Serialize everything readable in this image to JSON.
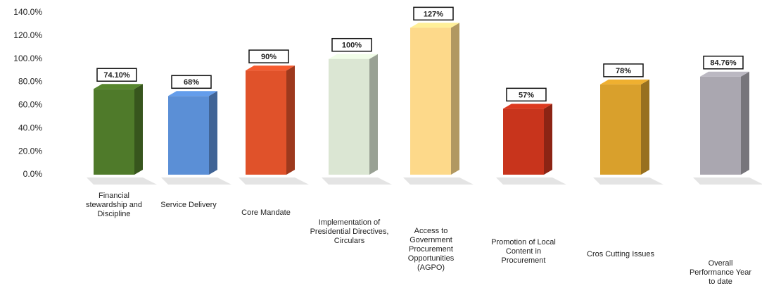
{
  "chart_data": {
    "type": "bar3d",
    "categories": [
      "Financial stewardship and Discipline",
      "Service Delivery",
      "Core Mandate",
      "Implementation of Presidential Directives, Circulars",
      "Access to Government Procurement Opportunities (AGPO)",
      "Promotion of Local Content in Procurement",
      "Cros Cutting Issues",
      "Overall Performance Year to date"
    ],
    "values": [
      74.1,
      68,
      90,
      100,
      127,
      57,
      78,
      84.76
    ],
    "value_labels": [
      "74.10%",
      "68%",
      "90%",
      "100%",
      "127%",
      "57%",
      "78%",
      "84.76%"
    ],
    "colors": [
      "#4f7a2a",
      "#5b8fd6",
      "#e0522a",
      "#dbe6d3",
      "#fdd98a",
      "#c8341c",
      "#d9a02c",
      "#aaa7b0"
    ],
    "ylim": [
      0,
      140
    ],
    "yticks": [
      {
        "value": 0,
        "label": "0.0%"
      },
      {
        "value": 20,
        "label": "20.0%"
      },
      {
        "value": 40,
        "label": "40.0%"
      },
      {
        "value": 60,
        "label": "60.0%"
      },
      {
        "value": 80,
        "label": "80.0%"
      },
      {
        "value": 100,
        "label": "100.0%"
      },
      {
        "value": 120,
        "label": "120.0%"
      },
      {
        "value": 140,
        "label": "140.0%"
      }
    ],
    "grid": false
  }
}
